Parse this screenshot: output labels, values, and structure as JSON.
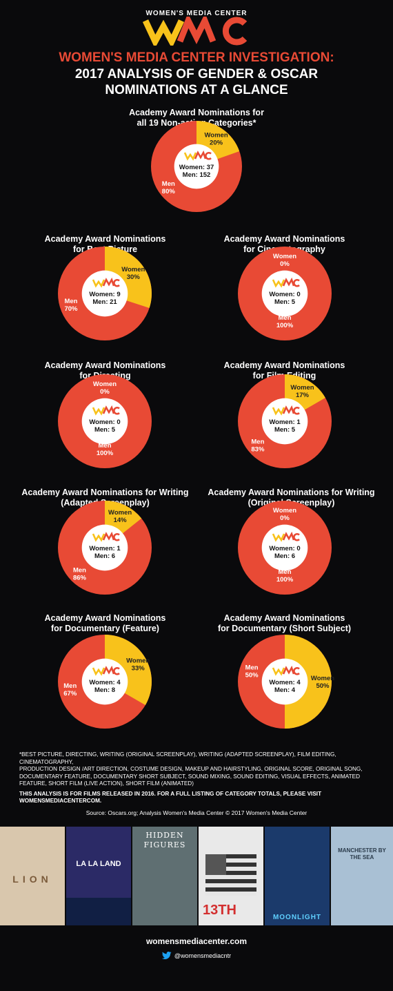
{
  "header": {
    "org": "WOMEN'S MEDIA CENTER",
    "logo_text": "WMC",
    "title_line1": "WOMEN'S MEDIA CENTER INVESTIGATION:",
    "title_line2": "2017 ANALYSIS OF GENDER & OSCAR",
    "title_line3": "NOMINATIONS AT A GLANCE"
  },
  "colors": {
    "women": "#f8c21b",
    "men": "#e84a35",
    "background": "#0a0a0c",
    "accent": "#e84a35"
  },
  "chart_data": [
    {
      "type": "pie",
      "title_line1": "Academy Award Nominations for",
      "title_line2": "all 19 Non-acting Categories*",
      "slices": [
        {
          "label": "Women",
          "value": 37,
          "percent": "20%"
        },
        {
          "label": "Men",
          "value": 152,
          "percent": "80%"
        }
      ],
      "center_women": "Women: 37",
      "center_men": "Men: 152"
    },
    {
      "type": "pie",
      "title_line1": "Academy Award Nominations",
      "title_line2": "for Best Picture",
      "slices": [
        {
          "label": "Women",
          "value": 9,
          "percent": "30%"
        },
        {
          "label": "Men",
          "value": 21,
          "percent": "70%"
        }
      ],
      "center_women": "Women: 9",
      "center_men": "Men: 21"
    },
    {
      "type": "pie",
      "title_line1": "Academy Award Nominations",
      "title_line2": "for Cinematography",
      "slices": [
        {
          "label": "Women",
          "value": 0,
          "percent": "0%"
        },
        {
          "label": "Men",
          "value": 5,
          "percent": "100%"
        }
      ],
      "center_women": "Women: 0",
      "center_men": "Men: 5"
    },
    {
      "type": "pie",
      "title_line1": "Academy Award Nominations",
      "title_line2": "for Directing",
      "slices": [
        {
          "label": "Women",
          "value": 0,
          "percent": "0%"
        },
        {
          "label": "Men",
          "value": 5,
          "percent": "100%"
        }
      ],
      "center_women": "Women: 0",
      "center_men": "Men: 5"
    },
    {
      "type": "pie",
      "title_line1": "Academy Award Nominations",
      "title_line2": "for Film Editing",
      "slices": [
        {
          "label": "Women",
          "value": 1,
          "percent": "17%"
        },
        {
          "label": "Men",
          "value": 5,
          "percent": "83%"
        }
      ],
      "center_women": "Women: 1",
      "center_men": "Men: 5"
    },
    {
      "type": "pie",
      "title_line1": "Academy Award Nominations for Writing",
      "title_line2": "(Adapted Screenplay)",
      "slices": [
        {
          "label": "Women",
          "value": 1,
          "percent": "14%"
        },
        {
          "label": "Men",
          "value": 6,
          "percent": "86%"
        }
      ],
      "center_women": "Women: 1",
      "center_men": "Men: 6"
    },
    {
      "type": "pie",
      "title_line1": "Academy Award Nominations for Writing",
      "title_line2": "(Original Screenplay)",
      "slices": [
        {
          "label": "Women",
          "value": 0,
          "percent": "0%"
        },
        {
          "label": "Men",
          "value": 6,
          "percent": "100%"
        }
      ],
      "center_women": "Women: 0",
      "center_men": "Men: 6"
    },
    {
      "type": "pie",
      "title_line1": "Academy Award Nominations",
      "title_line2": "for Documentary (Feature)",
      "slices": [
        {
          "label": "Women",
          "value": 4,
          "percent": "33%"
        },
        {
          "label": "Men",
          "value": 8,
          "percent": "67%"
        }
      ],
      "center_women": "Women: 4",
      "center_men": "Men: 8"
    },
    {
      "type": "pie",
      "title_line1": "Academy Award Nominations",
      "title_line2": "for Documentary (Short Subject)",
      "slices": [
        {
          "label": "Women",
          "value": 4,
          "percent": "50%"
        },
        {
          "label": "Men",
          "value": 4,
          "percent": "50%"
        }
      ],
      "center_women": "Women: 4",
      "center_men": "Men: 4"
    }
  ],
  "footnotes": {
    "line1": "*BEST PICTURE, DIRECTING, WRITING (ORIGINAL SCREENPLAY), WRITING (ADAPTED SCREENPLAY), FILM EDITING, CINEMATOGRAPHY,",
    "line2": "PRODUCTION DESIGN /ART DIRECTION, COSTUME DESIGN, MAKEUP AND HAIRSTYLING, ORIGINAL SCORE, ORIGINAL SONG,",
    "line3": "DOCUMENTARY FEATURE, DOCUMENTARY SHORT SUBJECT, SOUND MIXING, SOUND EDITING, VISUAL EFFECTS, ANIMATED",
    "line4": "FEATURE, SHORT FILM (LIVE ACTION), SHORT FILM (ANIMATED)",
    "analysis": "THIS ANALYSIS IS FOR FILMS RELEASED IN 2016. FOR A FULL LISTING OF CATEGORY TOTALS, PLEASE VISIT WOMENSMEDIACENTERCOM."
  },
  "source": "Source: Oscars.org; Analysis Women's Media Center      © 2017 Women's Media Center",
  "posters": [
    {
      "title": "LION",
      "bg": "#d9c7ad",
      "fg": "#7a5a3a"
    },
    {
      "title": "LA LA LAND",
      "bg": "#2b2a66",
      "fg": "#ffffff"
    },
    {
      "title": "HIDDEN FIGURES",
      "bg": "#5f6f72",
      "fg": "#ffffff"
    },
    {
      "title": "13TH",
      "bg": "#e9e9e9",
      "fg": "#d32f2f"
    },
    {
      "title": "MOONLIGHT",
      "bg": "#1b3a6b",
      "fg": "#5fd0ff"
    },
    {
      "title": "MANCHESTER BY THE SEA",
      "bg": "#a9c0d4",
      "fg": "#2a3a4a"
    }
  ],
  "footer": {
    "website": "womensmediacenter.com",
    "twitter": "@womensmediacntr"
  }
}
